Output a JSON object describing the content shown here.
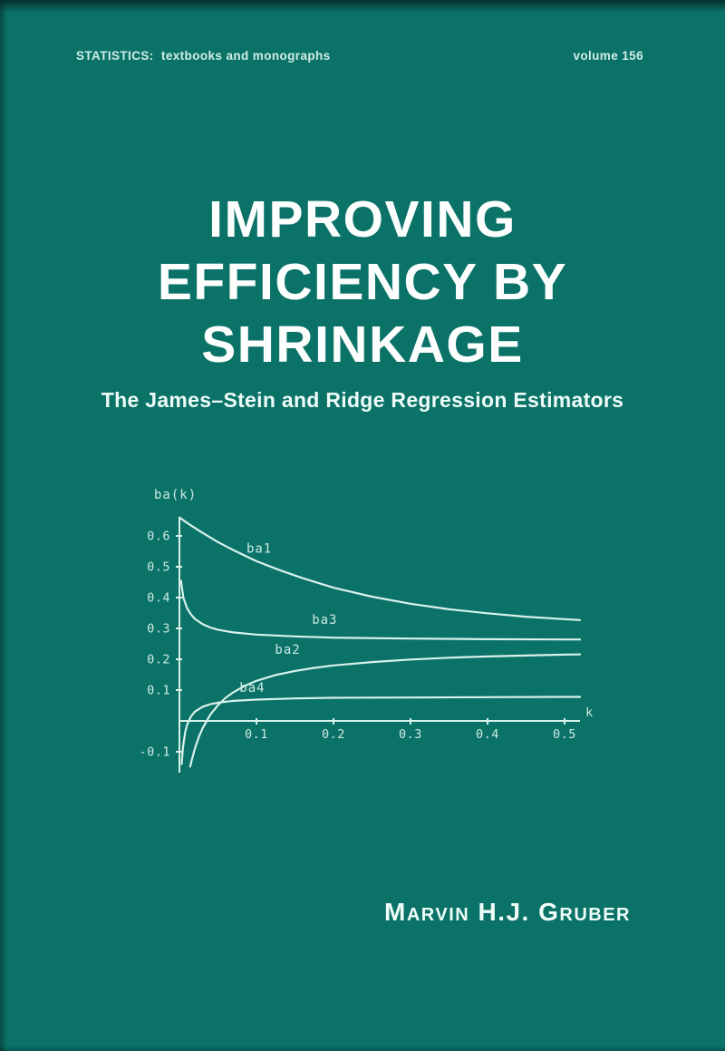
{
  "cover": {
    "series": "STATISTICS:  textbooks and monographs",
    "volume": "volume 156",
    "title_lines": [
      "IMPROVING",
      "EFFICIENCY BY",
      "SHRINKAGE"
    ],
    "subtitle": "The James–Stein and Ridge Regression Estimators",
    "author": "Marvin H.J. Gruber"
  },
  "colors": {
    "background": "#0b7268",
    "title_text": "#fdfffe",
    "body_text": "#cfeee7",
    "chart_line": "#d8f2ea",
    "chart_text": "#cdeae2"
  },
  "chart_data": {
    "type": "line",
    "title": "",
    "xlabel": "k",
    "ylabel": "ba(k)",
    "xlim": [
      0,
      0.55
    ],
    "ylim": [
      -0.17,
      0.72
    ],
    "xticks": [
      0.1,
      0.2,
      0.3,
      0.4,
      0.5
    ],
    "yticks": [
      0.6,
      0.5,
      0.4,
      0.3,
      0.2,
      0.1,
      -0.1
    ],
    "grid": false,
    "legend_position": "inline-curve-labels",
    "series": [
      {
        "name": "ba1",
        "label_pos": [
          0.087,
          0.545
        ],
        "points": [
          [
            0,
            0.66
          ],
          [
            0.01,
            0.642
          ],
          [
            0.02,
            0.626
          ],
          [
            0.03,
            0.61
          ],
          [
            0.05,
            0.58
          ],
          [
            0.07,
            0.554
          ],
          [
            0.1,
            0.518
          ],
          [
            0.13,
            0.489
          ],
          [
            0.16,
            0.463
          ],
          [
            0.2,
            0.432
          ],
          [
            0.25,
            0.403
          ],
          [
            0.3,
            0.38
          ],
          [
            0.35,
            0.362
          ],
          [
            0.4,
            0.349
          ],
          [
            0.45,
            0.338
          ],
          [
            0.5,
            0.33
          ],
          [
            0.52,
            0.327
          ]
        ]
      },
      {
        "name": "ba3",
        "label_pos": [
          0.172,
          0.315
        ],
        "points": [
          [
            0.002,
            0.455
          ],
          [
            0.005,
            0.4
          ],
          [
            0.01,
            0.365
          ],
          [
            0.015,
            0.345
          ],
          [
            0.02,
            0.331
          ],
          [
            0.03,
            0.314
          ],
          [
            0.04,
            0.303
          ],
          [
            0.05,
            0.296
          ],
          [
            0.07,
            0.287
          ],
          [
            0.1,
            0.28
          ],
          [
            0.15,
            0.274
          ],
          [
            0.2,
            0.27
          ],
          [
            0.3,
            0.267
          ],
          [
            0.4,
            0.265
          ],
          [
            0.5,
            0.264
          ],
          [
            0.52,
            0.264
          ]
        ]
      },
      {
        "name": "ba2",
        "label_pos": [
          0.124,
          0.218
        ],
        "points": [
          [
            0.014,
            -0.148
          ],
          [
            0.016,
            -0.127
          ],
          [
            0.02,
            -0.09
          ],
          [
            0.025,
            -0.053
          ],
          [
            0.03,
            -0.024
          ],
          [
            0.04,
            0.02
          ],
          [
            0.05,
            0.051
          ],
          [
            0.06,
            0.075
          ],
          [
            0.07,
            0.093
          ],
          [
            0.085,
            0.114
          ],
          [
            0.1,
            0.13
          ],
          [
            0.125,
            0.149
          ],
          [
            0.15,
            0.162
          ],
          [
            0.175,
            0.172
          ],
          [
            0.2,
            0.18
          ],
          [
            0.25,
            0.191
          ],
          [
            0.3,
            0.199
          ],
          [
            0.35,
            0.205
          ],
          [
            0.4,
            0.209
          ],
          [
            0.45,
            0.212
          ],
          [
            0.5,
            0.215
          ],
          [
            0.52,
            0.216
          ]
        ]
      },
      {
        "name": "ba4",
        "label_pos": [
          0.078,
          0.094
        ],
        "points": [
          [
            0.003,
            -0.14
          ],
          [
            0.004,
            -0.103
          ],
          [
            0.005,
            -0.077
          ],
          [
            0.0075,
            -0.036
          ],
          [
            0.01,
            -0.012
          ],
          [
            0.015,
            0.015
          ],
          [
            0.02,
            0.03
          ],
          [
            0.03,
            0.046
          ],
          [
            0.04,
            0.054
          ],
          [
            0.05,
            0.059
          ],
          [
            0.07,
            0.065
          ],
          [
            0.1,
            0.069
          ],
          [
            0.15,
            0.073
          ],
          [
            0.2,
            0.075
          ],
          [
            0.3,
            0.076
          ],
          [
            0.4,
            0.077
          ],
          [
            0.5,
            0.078
          ],
          [
            0.52,
            0.078
          ]
        ]
      }
    ]
  }
}
